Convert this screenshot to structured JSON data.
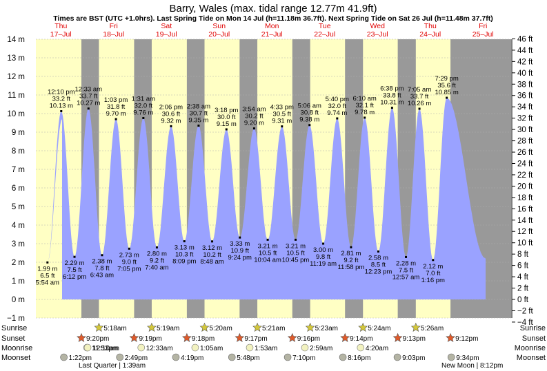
{
  "chart_data": {
    "type": "area",
    "title": "Barry, Wales (max. tidal range 12.77m 41.9ft)",
    "subtitle": "Times are BST (UTC +1.0hrs). Last Spring Tide on Mon 14 Jul (h=11.18m 36.7ft). Next Spring Tide on Sat 26 Jul (h=11.48m 37.7ft)",
    "day_headers": [
      {
        "day": "Thu",
        "date": "17–Jul"
      },
      {
        "day": "Fri",
        "date": "18–Jul"
      },
      {
        "day": "Sat",
        "date": "19–Jul"
      },
      {
        "day": "Sun",
        "date": "20–Jul"
      },
      {
        "day": "Mon",
        "date": "21–Jul"
      },
      {
        "day": "Tue",
        "date": "22–Jul"
      },
      {
        "day": "Wed",
        "date": "23–Jul"
      },
      {
        "day": "Thu",
        "date": "24–Jul"
      },
      {
        "day": "Fri",
        "date": "25–Jul"
      }
    ],
    "y_left_unit": "m",
    "y_left_range": [
      -1,
      14
    ],
    "y_left_ticks": [
      "14 m",
      "13 m",
      "12 m",
      "11 m",
      "10 m",
      "9 m",
      "8 m",
      "7 m",
      "6 m",
      "5 m",
      "4 m",
      "3 m",
      "2 m",
      "1 m",
      "0 m",
      "−1 m"
    ],
    "y_right_unit": "ft",
    "y_right_ticks": [
      "46 ft",
      "44 ft",
      "42 ft",
      "40 ft",
      "38 ft",
      "36 ft",
      "34 ft",
      "32 ft",
      "30 ft",
      "28 ft",
      "26 ft",
      "24 ft",
      "22 ft",
      "20 ft",
      "18 ft",
      "16 ft",
      "14 ft",
      "12 ft",
      "10 ft",
      "8 ft",
      "6 ft",
      "4 ft",
      "2 ft",
      "0 ft",
      "−2 ft",
      "−4 ft"
    ],
    "series": [
      {
        "name": "",
        "values": [
          {
            "d": 0,
            "time": "",
            "m": 9.7
          },
          {
            "d": 0,
            "time": "5:54 am",
            "m": 1.99,
            "ft": "6.5 ft",
            "label": "1.99 m",
            "type": "low"
          },
          {
            "d": 0,
            "time": "12:10 pm",
            "m": 10.13,
            "ft": "33.2 ft",
            "label": "10.13 m",
            "type": "high"
          },
          {
            "d": 0,
            "time": "6:12 pm",
            "m": 2.29,
            "ft": "7.5 ft",
            "label": "2.29 m",
            "type": "low"
          },
          {
            "d": 1,
            "time": "12:33 am",
            "m": 10.27,
            "ft": "33.7 ft",
            "label": "10.27 m",
            "type": "high"
          },
          {
            "d": 1,
            "time": "6:43 am",
            "m": 2.38,
            "ft": "7.8 ft",
            "label": "2.38 m",
            "type": "low"
          },
          {
            "d": 1,
            "time": "1:03 pm",
            "m": 9.7,
            "ft": "31.8 ft",
            "label": "9.70 m",
            "type": "high"
          },
          {
            "d": 1,
            "time": "7:05 pm",
            "m": 2.73,
            "ft": "9.0 ft",
            "label": "2.73 m",
            "type": "low"
          },
          {
            "d": 2,
            "time": "1:31 am",
            "m": 9.76,
            "ft": "32.0 ft",
            "label": "9.76 m",
            "type": "high"
          },
          {
            "d": 2,
            "time": "7:40 am",
            "m": 2.8,
            "ft": "9.2 ft",
            "label": "2.80 m",
            "type": "low"
          },
          {
            "d": 2,
            "time": "2:06 pm",
            "m": 9.32,
            "ft": "30.6 ft",
            "label": "9.32 m",
            "type": "high"
          },
          {
            "d": 2,
            "time": "8:09 pm",
            "m": 3.13,
            "ft": "10.3 ft",
            "label": "3.13 m",
            "type": "low"
          },
          {
            "d": 3,
            "time": "2:38 am",
            "m": 9.35,
            "ft": "30.7 ft",
            "label": "9.35 m",
            "type": "high"
          },
          {
            "d": 3,
            "time": "8:48 am",
            "m": 3.12,
            "ft": "10.2 ft",
            "label": "3.12 m",
            "type": "low"
          },
          {
            "d": 3,
            "time": "3:18 pm",
            "m": 9.15,
            "ft": "30.0 ft",
            "label": "9.15 m",
            "type": "high"
          },
          {
            "d": 3,
            "time": "9:24 pm",
            "m": 3.33,
            "ft": "10.9 ft",
            "label": "3.33 m",
            "type": "low"
          },
          {
            "d": 4,
            "time": "3:54 am",
            "m": 9.2,
            "ft": "30.2 ft",
            "label": "9.20 m",
            "type": "high"
          },
          {
            "d": 4,
            "time": "10:04 am",
            "m": 3.21,
            "ft": "10.5 ft",
            "label": "3.21 m",
            "type": "low"
          },
          {
            "d": 4,
            "time": "4:33 pm",
            "m": 9.31,
            "ft": "30.5 ft",
            "label": "9.31 m",
            "type": "high"
          },
          {
            "d": 4,
            "time": "10:45 pm",
            "m": 3.21,
            "ft": "10.5 ft",
            "label": "3.21 m",
            "type": "low"
          },
          {
            "d": 5,
            "time": "5:06 am",
            "m": 9.38,
            "ft": "30.8 ft",
            "label": "9.38 m",
            "type": "high"
          },
          {
            "d": 5,
            "time": "11:19 am",
            "m": 3.0,
            "ft": "9.8 ft",
            "label": "3.00 m",
            "type": "low"
          },
          {
            "d": 5,
            "time": "5:40 pm",
            "m": 9.74,
            "ft": "32.0 ft",
            "label": "9.74 m",
            "type": "high"
          },
          {
            "d": 5,
            "time": "11:58 pm",
            "m": 2.81,
            "ft": "9.2 ft",
            "label": "2.81 m",
            "type": "low"
          },
          {
            "d": 6,
            "time": "6:10 am",
            "m": 9.78,
            "ft": "32.1 ft",
            "label": "9.78 m",
            "type": "high"
          },
          {
            "d": 6,
            "time": "12:23 pm",
            "m": 2.58,
            "ft": "8.5 ft",
            "label": "2.58 m",
            "type": "low"
          },
          {
            "d": 6,
            "time": "6:38 pm",
            "m": 10.31,
            "ft": "33.8 ft",
            "label": "10.31 m",
            "type": "high"
          },
          {
            "d": 7,
            "time": "12:57 am",
            "m": 2.28,
            "ft": "7.5 ft",
            "label": "2.28 m",
            "type": "low"
          },
          {
            "d": 7,
            "time": "7:05 am",
            "m": 10.26,
            "ft": "33.7 ft",
            "label": "10.26 m",
            "type": "high"
          },
          {
            "d": 7,
            "time": "1:16 pm",
            "m": 2.12,
            "ft": "7.0 ft",
            "label": "2.12 m",
            "type": "low"
          },
          {
            "d": 7,
            "time": "7:29 pm",
            "m": 10.85,
            "ft": "35.6 ft",
            "label": "10.85 m",
            "type": "high"
          },
          {
            "d": 7,
            "time": "",
            "m": 2.2
          }
        ]
      }
    ],
    "night_shading": [
      {
        "d": 0,
        "from": "9:20 pm"
      },
      {
        "d": 1,
        "to": "5:18 am"
      },
      {
        "d": 1,
        "from": "9:19 pm"
      },
      {
        "d": 2,
        "to": "5:19 am"
      },
      {
        "d": 2,
        "from": "9:18 pm"
      },
      {
        "d": 3,
        "to": "5:20 am"
      },
      {
        "d": 3,
        "from": "9:17 pm"
      },
      {
        "d": 4,
        "to": "5:21 am"
      },
      {
        "d": 4,
        "from": "9:16 pm"
      },
      {
        "d": 5,
        "to": "5:23 am"
      },
      {
        "d": 5,
        "from": "9:14 pm"
      },
      {
        "d": 6,
        "to": "5:24 am"
      },
      {
        "d": 6,
        "from": "9:13 pm"
      },
      {
        "d": 7,
        "to": "5:26 am"
      },
      {
        "d": 7,
        "from": "9:12 pm"
      }
    ],
    "grid": true,
    "colors": {
      "water": "#9aa2ff",
      "day": "#ffffc4",
      "night": "#999999",
      "day_header": "#e00000",
      "sun": "#d4c83a",
      "sunset": "#e05a2a",
      "moon": "#f2f2c0",
      "moonset": "#b4b4a4"
    }
  },
  "rows": {
    "labels": [
      "Sunrise",
      "Sunset",
      "Moonrise",
      "Moonset"
    ],
    "sunrise": [
      {
        "d": 1,
        "time": "5:18am"
      },
      {
        "d": 2,
        "time": "5:19am"
      },
      {
        "d": 3,
        "time": "5:20am"
      },
      {
        "d": 4,
        "time": "5:21am"
      },
      {
        "d": 5,
        "time": "5:23am"
      },
      {
        "d": 6,
        "time": "5:24am"
      },
      {
        "d": 7,
        "time": "5:26am"
      }
    ],
    "sunset": [
      {
        "d": 0,
        "time": "9:20pm"
      },
      {
        "d": 1,
        "time": "9:19pm"
      },
      {
        "d": 2,
        "time": "9:18pm"
      },
      {
        "d": 3,
        "time": "9:17pm"
      },
      {
        "d": 4,
        "time": "9:16pm"
      },
      {
        "d": 5,
        "time": "9:14pm"
      },
      {
        "d": 6,
        "time": "9:13pm"
      },
      {
        "d": 7,
        "time": "9:12pm"
      }
    ],
    "moonrise": [
      {
        "d": 0,
        "time": "11:53pm"
      },
      {
        "d": 1,
        "time": "12:10am"
      },
      {
        "d": 2,
        "time": "12:33am"
      },
      {
        "d": 3,
        "time": "1:05am"
      },
      {
        "d": 4,
        "time": "1:53am"
      },
      {
        "d": 5,
        "time": "2:59am"
      },
      {
        "d": 6,
        "time": "4:20am"
      }
    ],
    "moonset": [
      {
        "d": 0,
        "time": "1:22pm"
      },
      {
        "d": 1,
        "time": "2:49pm"
      },
      {
        "d": 2,
        "time": "4:19pm"
      },
      {
        "d": 3,
        "time": "5:48pm"
      },
      {
        "d": 4,
        "time": "7:10pm"
      },
      {
        "d": 5,
        "time": "8:16pm"
      },
      {
        "d": 6,
        "time": "9:03pm"
      },
      {
        "d": 7,
        "time": "9:34pm"
      }
    ],
    "phases": [
      {
        "text": "Last Quarter | 1:39am"
      },
      {
        "text": "New Moon | 8:12pm"
      }
    ]
  }
}
